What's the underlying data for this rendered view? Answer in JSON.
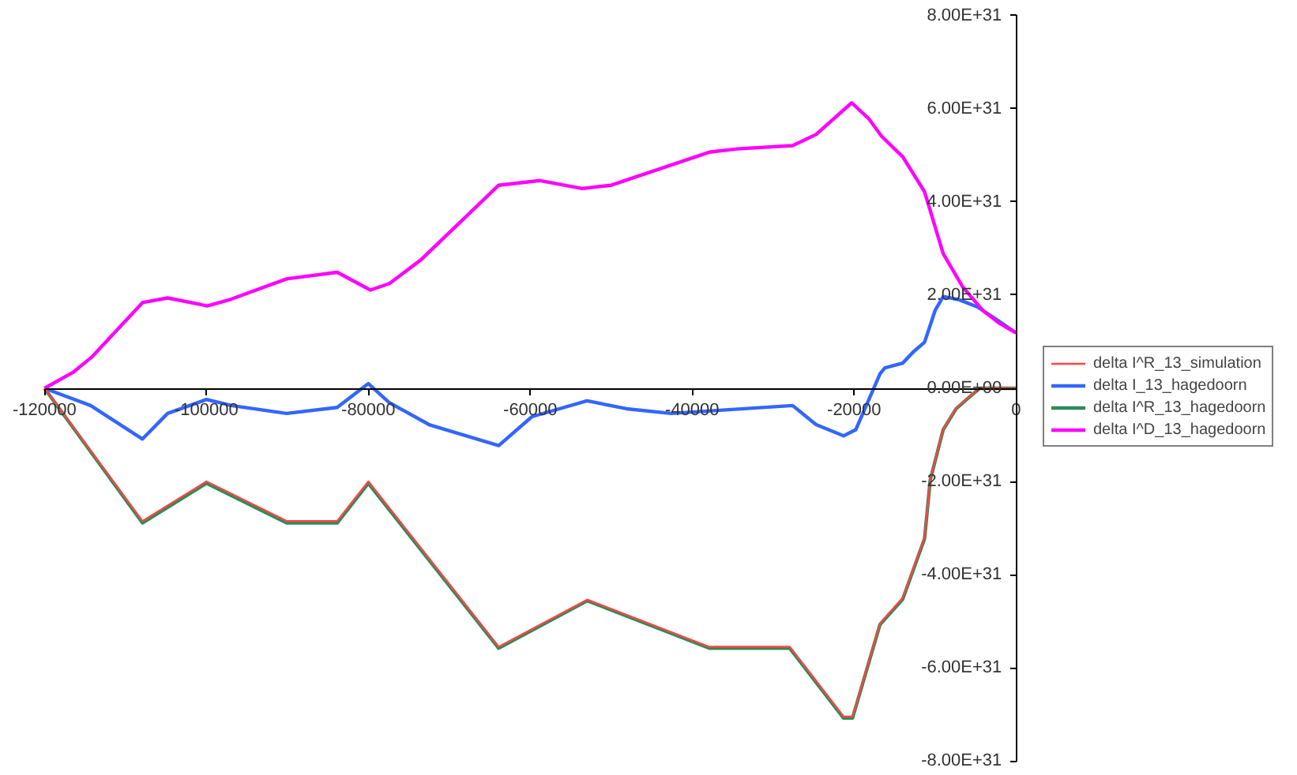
{
  "chart_data": {
    "type": "line",
    "xlim": [
      -120000,
      0
    ],
    "ylim": [
      -8e+31,
      8e+31
    ],
    "xticks": [
      -120000,
      -100000,
      -80000,
      -60000,
      -40000,
      -20000,
      0
    ],
    "yticks": [
      {
        "value": -8e+31,
        "label": "-8.00E+31"
      },
      {
        "value": -6e+31,
        "label": "-6.00E+31"
      },
      {
        "value": -4e+31,
        "label": "-4.00E+31"
      },
      {
        "value": -2e+31,
        "label": "-2.00E+31"
      },
      {
        "value": 0,
        "label": "0.00E+00"
      },
      {
        "value": 2e+31,
        "label": "2.00E+31"
      },
      {
        "value": 4e+31,
        "label": "4.00E+31"
      },
      {
        "value": 6e+31,
        "label": "6.00E+31"
      },
      {
        "value": 8e+31,
        "label": "8.00E+31"
      }
    ],
    "grid": false,
    "legend": "right",
    "marker": "none",
    "line_style": "solid",
    "series": [
      {
        "name": "delta I^R_13_simulation",
        "color": "#ff4444",
        "x": [
          -120000,
          -107900,
          -100000,
          -90100,
          -83850,
          -80000,
          -63900,
          -52950,
          -37900,
          -27950,
          -21300,
          -20200,
          -16800,
          -14000,
          -11300,
          -10600,
          -9000,
          -7400,
          -6100,
          -4500,
          0
        ],
        "values": [
          0,
          -2.85e+31,
          -2e+31,
          -2.85e+31,
          -2.85e+31,
          -2e+31,
          -5.55e+31,
          -4.54e+31,
          -5.55e+31,
          -5.55e+31,
          -7.05e+31,
          -7.05e+31,
          -5.05e+31,
          -4.5e+31,
          -3.2e+31,
          -1.95e+31,
          -8.8e+30,
          -4.3e+30,
          -2.3e+30,
          0,
          0
        ]
      },
      {
        "name": "delta I_13_hagedoorn",
        "color": "#3366ff",
        "x": [
          -120000,
          -114300,
          -107900,
          -104800,
          -100000,
          -96900,
          -90100,
          -83850,
          -80000,
          -77400,
          -72500,
          -63900,
          -59800,
          -53000,
          -48100,
          -42600,
          -27600,
          -24700,
          -21300,
          -19800,
          -16800,
          -16200,
          -14000,
          -12700,
          -11300,
          -10000,
          -9000,
          -7000,
          -4700,
          -2600,
          0
        ],
        "values": [
          0,
          -3.7e+30,
          -1.09e+31,
          -5.4e+30,
          -2.4e+30,
          -3.7e+30,
          -5.4e+30,
          -4.1e+30,
          1e+30,
          -3.1e+30,
          -7.8e+30,
          -1.23e+31,
          -6.1e+30,
          -2.7e+30,
          -4.4e+30,
          -5.4e+30,
          -3.7e+30,
          -7.8e+30,
          -1.02e+31,
          -8.9e+30,
          3.1e+30,
          4.4e+30,
          5.4e+30,
          7.8e+30,
          9.9e+30,
          1.67e+31,
          1.97e+31,
          1.9e+31,
          1.74e+31,
          1.5e+31,
          1.19e+31
        ]
      },
      {
        "name": "delta I^R_13_hagedoorn",
        "color": "#2e8b57",
        "x": [
          -120000,
          -107900,
          -100000,
          -90100,
          -83850,
          -80000,
          -63900,
          -52950,
          -37900,
          -27950,
          -21300,
          -20200,
          -16800,
          -14000,
          -11300,
          -10600,
          -9000,
          -7400,
          -6100,
          -4500,
          0
        ],
        "values": [
          0,
          -2.89e+31,
          -2.04e+31,
          -2.89e+31,
          -2.89e+31,
          -2.04e+31,
          -5.58e+31,
          -4.56e+31,
          -5.58e+31,
          -5.58e+31,
          -7.08e+31,
          -7.08e+31,
          -5.07e+31,
          -4.53e+31,
          -3.23e+31,
          -1.97e+31,
          -8.9e+30,
          -4.4e+30,
          -2.4e+30,
          0,
          0
        ]
      },
      {
        "name": "delta I^D_13_hagedoorn",
        "color": "#ff00ff",
        "x": [
          -120000,
          -116500,
          -114100,
          -107900,
          -104800,
          -99900,
          -97000,
          -90100,
          -83850,
          -79750,
          -77400,
          -73500,
          -63900,
          -58800,
          -53600,
          -50000,
          -37900,
          -34400,
          -27600,
          -24700,
          -20300,
          -18200,
          -16600,
          -14000,
          -11300,
          -9000,
          -6600,
          -4100,
          -2100,
          0
        ],
        "values": [
          0,
          3.4e+30,
          6.8e+30,
          1.84e+31,
          1.94e+31,
          1.77e+31,
          1.91e+31,
          2.35e+31,
          2.49e+31,
          2.11e+31,
          2.25e+31,
          2.76e+31,
          4.36e+31,
          4.46e+31,
          4.29e+31,
          4.36e+31,
          5.07e+31,
          5.14e+31,
          5.21e+31,
          5.45e+31,
          6.13e+31,
          5.79e+31,
          5.41e+31,
          4.97e+31,
          4.22e+31,
          2.89e+31,
          2.18e+31,
          1.67e+31,
          1.4e+31,
          1.19e+31
        ]
      }
    ]
  }
}
